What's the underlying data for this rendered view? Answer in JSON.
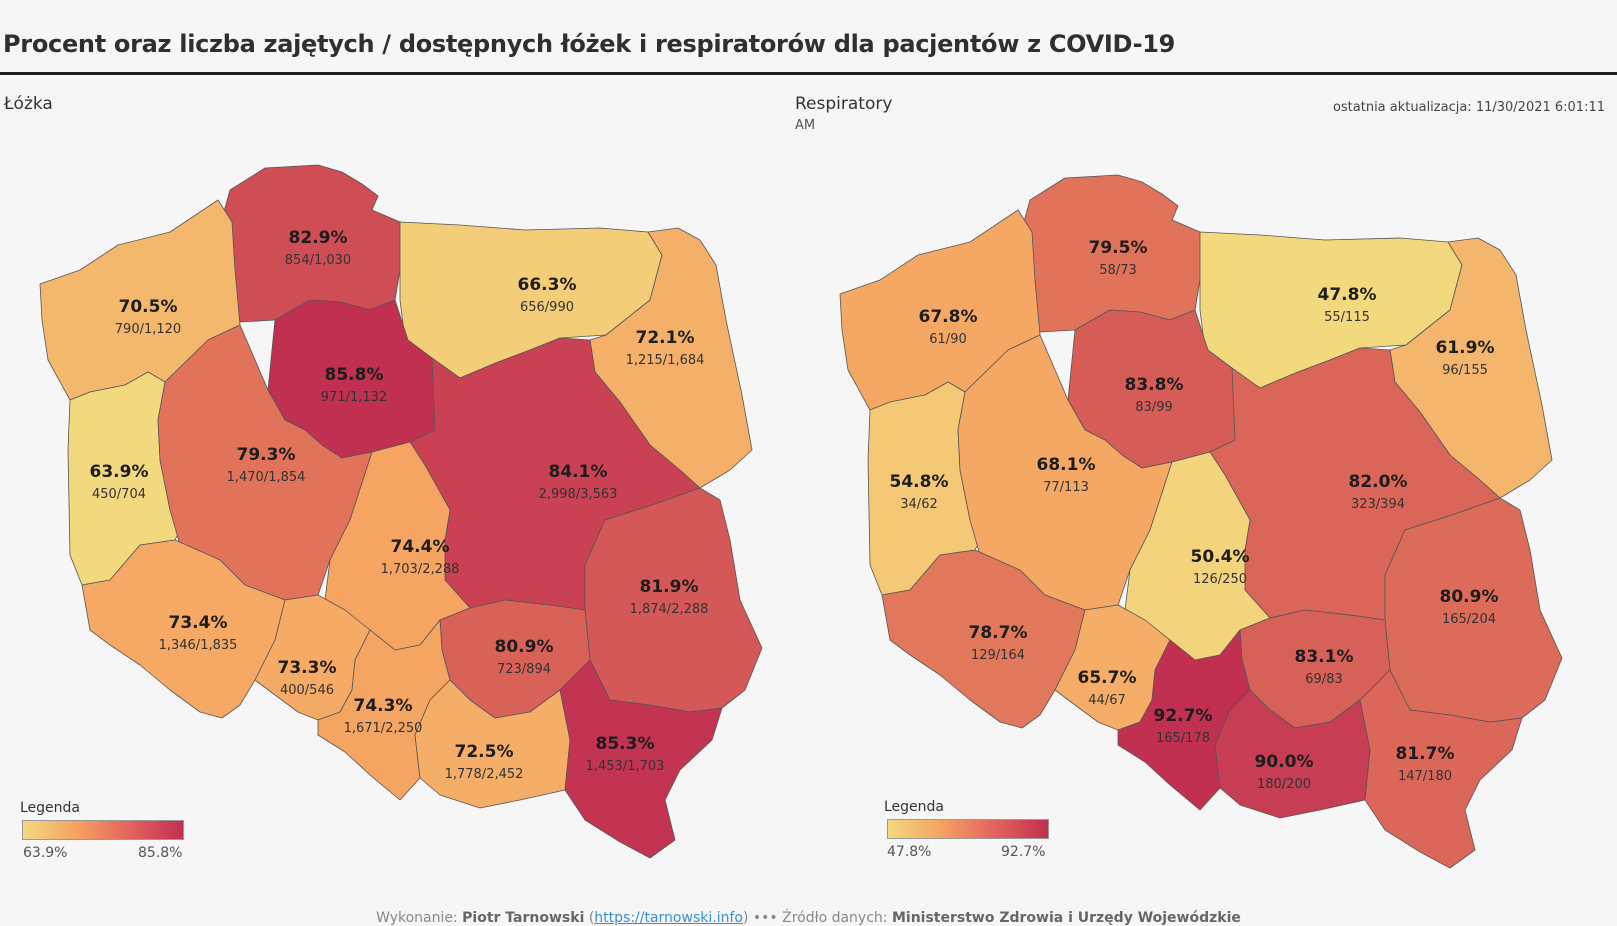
{
  "title": "Procent oraz liczba zajętych / dostępnych łóżek i respiratorów dla pacjentów z COVID-19",
  "last_update": "ostatnia aktualizacja: 11/30/2021 6:01:11",
  "last_update_ampm": "AM",
  "colors": {
    "low": "#f3d97e",
    "mid": "#f5a261",
    "high": "#c12f51"
  },
  "beds": {
    "label": "Łóżka",
    "legend": {
      "title": "Legenda",
      "min": "63.9%",
      "max": "85.8%"
    },
    "regions": [
      {
        "id": "pomorskie",
        "pct": "82.9%",
        "count": "854/1,030",
        "value": 82.9
      },
      {
        "id": "zachodniopomorskie",
        "pct": "70.5%",
        "count": "790/1,120",
        "value": 70.5
      },
      {
        "id": "warminsko-mazurskie",
        "pct": "66.3%",
        "count": "656/990",
        "value": 66.3
      },
      {
        "id": "podlaskie",
        "pct": "72.1%",
        "count": "1,215/1,684",
        "value": 72.1
      },
      {
        "id": "kujawsko-pomorskie",
        "pct": "85.8%",
        "count": "971/1,132",
        "value": 85.8
      },
      {
        "id": "lubuskie",
        "pct": "63.9%",
        "count": "450/704",
        "value": 63.9
      },
      {
        "id": "wielkopolskie",
        "pct": "79.3%",
        "count": "1,470/1,854",
        "value": 79.3
      },
      {
        "id": "mazowieckie",
        "pct": "84.1%",
        "count": "2,998/3,563",
        "value": 84.1
      },
      {
        "id": "lodzkie",
        "pct": "74.4%",
        "count": "1,703/2,288",
        "value": 74.4
      },
      {
        "id": "lubelskie",
        "pct": "81.9%",
        "count": "1,874/2,288",
        "value": 81.9
      },
      {
        "id": "dolnoslaskie",
        "pct": "73.4%",
        "count": "1,346/1,835",
        "value": 73.4
      },
      {
        "id": "opolskie",
        "pct": "73.3%",
        "count": "400/546",
        "value": 73.3
      },
      {
        "id": "swietokrzyskie",
        "pct": "80.9%",
        "count": "723/894",
        "value": 80.9
      },
      {
        "id": "slaskie",
        "pct": "74.3%",
        "count": "1,671/2,250",
        "value": 74.3
      },
      {
        "id": "malopolskie",
        "pct": "72.5%",
        "count": "1,778/2,452",
        "value": 72.5
      },
      {
        "id": "podkarpackie",
        "pct": "85.3%",
        "count": "1,453/1,703",
        "value": 85.3
      }
    ]
  },
  "respirators": {
    "label": "Respiratory",
    "legend": {
      "title": "Legenda",
      "min": "47.8%",
      "max": "92.7%"
    },
    "regions": [
      {
        "id": "pomorskie",
        "pct": "79.5%",
        "count": "58/73",
        "value": 79.5
      },
      {
        "id": "zachodniopomorskie",
        "pct": "67.8%",
        "count": "61/90",
        "value": 67.8
      },
      {
        "id": "warminsko-mazurskie",
        "pct": "47.8%",
        "count": "55/115",
        "value": 47.8
      },
      {
        "id": "podlaskie",
        "pct": "61.9%",
        "count": "96/155",
        "value": 61.9
      },
      {
        "id": "kujawsko-pomorskie",
        "pct": "83.8%",
        "count": "83/99",
        "value": 83.8
      },
      {
        "id": "lubuskie",
        "pct": "54.8%",
        "count": "34/62",
        "value": 54.8
      },
      {
        "id": "wielkopolskie",
        "pct": "68.1%",
        "count": "77/113",
        "value": 68.1
      },
      {
        "id": "mazowieckie",
        "pct": "82.0%",
        "count": "323/394",
        "value": 82.0
      },
      {
        "id": "lodzkie",
        "pct": "50.4%",
        "count": "126/250",
        "value": 50.4
      },
      {
        "id": "lubelskie",
        "pct": "80.9%",
        "count": "165/204",
        "value": 80.9
      },
      {
        "id": "dolnoslaskie",
        "pct": "78.7%",
        "count": "129/164",
        "value": 78.7
      },
      {
        "id": "opolskie",
        "pct": "65.7%",
        "count": "44/67",
        "value": 65.7
      },
      {
        "id": "swietokrzyskie",
        "pct": "83.1%",
        "count": "69/83",
        "value": 83.1
      },
      {
        "id": "slaskie",
        "pct": "92.7%",
        "count": "165/178",
        "value": 92.7
      },
      {
        "id": "malopolskie",
        "pct": "90.0%",
        "count": "180/200",
        "value": 90.0
      },
      {
        "id": "podkarpackie",
        "pct": "81.7%",
        "count": "147/180",
        "value": 81.7
      }
    ]
  },
  "footer": {
    "made_by_label": "Wykonanie:",
    "author": "Piotr Tarnowski",
    "link": "https://tarnowski.info",
    "separator": "•••",
    "source_label": "Źródło danych:",
    "source": "Ministerstwo Zdrowia i Urzędy Wojewódzkie"
  }
}
